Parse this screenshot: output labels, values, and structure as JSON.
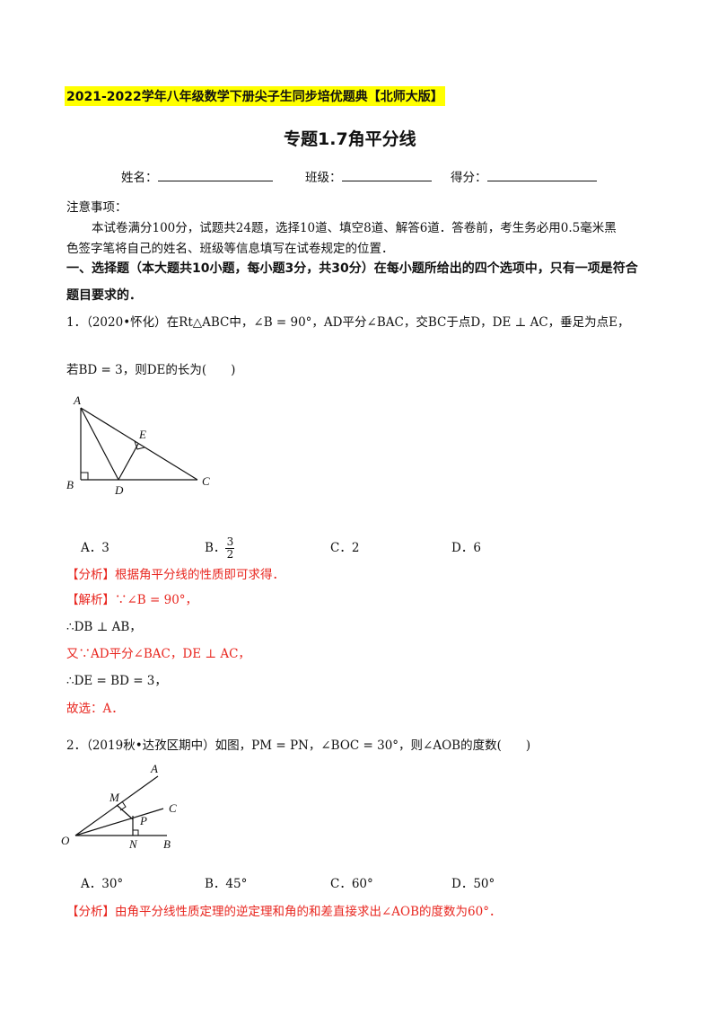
{
  "header": {
    "banner": "2021-2022学年八年级数学下册尖子生同步培优题典【北师大版】",
    "title": "专题1.7角平分线"
  },
  "info": {
    "name_label": "姓名：",
    "class_label": "班级：",
    "score_label": "得分："
  },
  "notes": {
    "heading": "注意事项：",
    "line1": "本试卷满分100分，试题共24题，选择10道、填空8道、解答6道．答卷前，考生务必用0.5毫米黑",
    "line2": "色签字笔将自己的姓名、班级等信息填写在试卷规定的位置．"
  },
  "section": {
    "line1": "一、选择题（本大题共10小题，每小题3分，共30分）在每小题所给出的四个选项中，只有一项是符合",
    "line2": "题目要求的．"
  },
  "q1": {
    "stem1": "1．（2020•怀化）在Rt△ABC中，∠B = 90°，AD平分∠BAC，交BC于点D，DE ⊥ AC，垂足为点E，",
    "stem2": "若BD = 3，则DE的长为(　　)",
    "figure": {
      "A": "A",
      "B": "B",
      "C": "C",
      "D": "D",
      "E": "E"
    },
    "options": {
      "a": "A．3",
      "b_label": "B．",
      "b_num": "3",
      "b_den": "2",
      "c": "C．2",
      "d": "D．6"
    },
    "analysis": "【分析】根据角平分线的性质即可求得．",
    "solution": [
      "【解析】∵∠B = 90°，",
      "∴DB ⊥ AB，",
      "又∵AD平分∠BAC，DE ⊥ AC，",
      "∴DE = BD = 3，",
      "故选：A．"
    ]
  },
  "q2": {
    "stem": "2．（2019秋•达孜区期中）如图，PM = PN，∠BOC = 30°，则∠AOB的度数(　　)",
    "figure": {
      "A": "A",
      "M": "M",
      "C": "C",
      "P": "P",
      "O": "O",
      "N": "N",
      "B": "B"
    },
    "options": {
      "a": "A．30°",
      "b": "B．45°",
      "c": "C．60°",
      "d": "D．50°"
    },
    "analysis": "【分析】由角平分线性质定理的逆定理和角的和差直接求出∠AOB的度数为60°．"
  },
  "colors": {
    "highlight": "#ffff00",
    "answer_red": "#e8261f"
  }
}
